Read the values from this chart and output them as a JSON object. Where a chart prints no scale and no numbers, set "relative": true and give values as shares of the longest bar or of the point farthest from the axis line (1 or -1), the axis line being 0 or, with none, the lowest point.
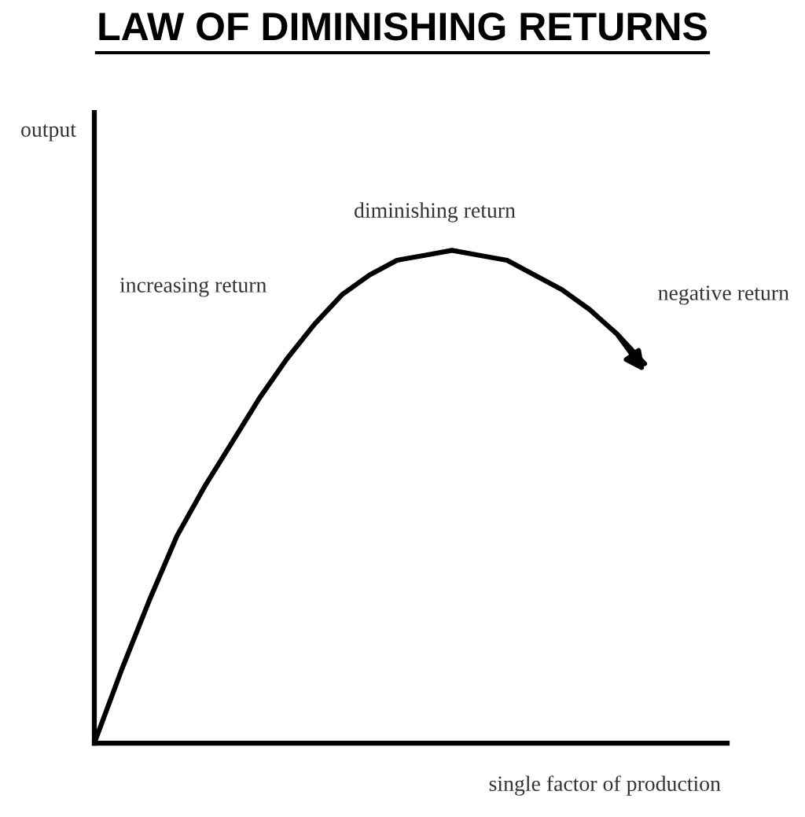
{
  "chart_data": {
    "type": "line",
    "title": "LAW OF DIMINISHING RETURNS",
    "xlabel": "single factor of production",
    "relative": true,
    "categories": [
      null,
      null,
      null,
      null,
      null,
      null,
      null,
      null,
      null,
      null,
      null,
      null,
      null,
      null,
      null,
      null,
      null,
      null,
      null,
      null,
      null,
      null,
      null,
      null
    ],
    "series": [
      {
        "color": "#000000",
        "values": [
          0,
          0.15,
          0.29,
          0.42,
          0.52,
          0.61,
          0.7,
          0.78,
          0.85,
          0.91,
          0.95,
          0.98,
          0.99,
          1.0,
          0.99,
          0.98,
          0.95,
          0.92,
          0.88,
          0.83,
          0.77,
          null,
          null,
          null
        ]
      }
    ],
    "annotations": [
      "output",
      "increasing return",
      "diminishing return",
      "negative return"
    ],
    "marker": "none",
    "line_style": "solid"
  }
}
